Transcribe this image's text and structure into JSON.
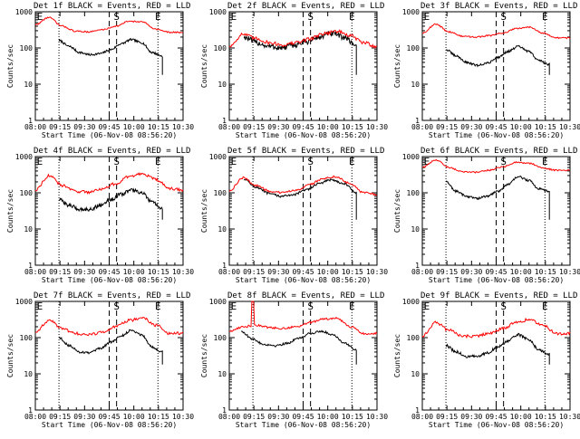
{
  "figure": {
    "ylabel": "Counts/sec",
    "xlabel": "Start Time (06-Nov-08 08:56:20)",
    "title_suffix": "BLACK = Events, RED = LLD",
    "x_ticks": [
      "08:00",
      "09:15",
      "09:30",
      "09:45",
      "10:00",
      "10:15",
      "10:30"
    ],
    "y_ticks": [
      "1",
      "10",
      "100",
      "1000"
    ],
    "colors": {
      "events": "#000000",
      "lld": "#ff0000",
      "axes": "#000000",
      "background": "#ffffff"
    }
  },
  "chart_data": [
    {
      "type": "line",
      "title": "Det 1f BLACK = Events, RED = LLD",
      "xlabel": "Start Time (06-Nov-08 08:56:20)",
      "ylabel": "Counts/sec",
      "log_y": true,
      "ylim": [
        1,
        1000
      ],
      "x_tick_labels": [
        "08:00",
        "09:15",
        "09:30",
        "09:45",
        "10:00",
        "10:15",
        "10:30"
      ],
      "markers": [
        {
          "label": "E",
          "x": 0.03
        },
        {
          "label": "S",
          "x": 0.55
        },
        {
          "label": "E",
          "x": 0.83
        }
      ],
      "dotted_lines": [
        0.16,
        0.83
      ],
      "dashed_lines": [
        0.5,
        0.55
      ],
      "series": [
        {
          "name": "Events",
          "color": "#000000",
          "x_start": 0.16,
          "x_end": 0.86,
          "end_drop": true,
          "noise": 0.03,
          "values": [
            160,
            110,
            75,
            65,
            70,
            90,
            130,
            170,
            140,
            75,
            60
          ]
        },
        {
          "name": "LLD",
          "color": "#ff0000",
          "x_start": 0.0,
          "x_end": 1.0,
          "noise": 0.02,
          "values": [
            440,
            700,
            400,
            290,
            280,
            320,
            400,
            550,
            520,
            330,
            270,
            270
          ]
        }
      ]
    },
    {
      "type": "line",
      "title": "Det 2f BLACK = Events, RED = LLD",
      "xlabel": "Start Time (06-Nov-08 08:56:20)",
      "ylabel": "Counts/sec",
      "log_y": true,
      "ylim": [
        1,
        1000
      ],
      "x_tick_labels": [
        "08:00",
        "09:15",
        "09:30",
        "09:45",
        "10:00",
        "10:15",
        "10:30"
      ],
      "markers": [
        {
          "label": "E",
          "x": 0.03
        },
        {
          "label": "S",
          "x": 0.55
        },
        {
          "label": "E",
          "x": 0.83
        }
      ],
      "dotted_lines": [
        0.16,
        0.83
      ],
      "dashed_lines": [
        0.5,
        0.55
      ],
      "series": [
        {
          "name": "Events",
          "color": "#000000",
          "x_start": 0.1,
          "x_end": 0.86,
          "end_drop": true,
          "noise": 0.08,
          "values": [
            200,
            140,
            110,
            100,
            120,
            150,
            200,
            250,
            200,
            120
          ]
        },
        {
          "name": "LLD",
          "color": "#ff0000",
          "x_start": 0.0,
          "x_end": 1.0,
          "noise": 0.05,
          "values": [
            110,
            240,
            180,
            140,
            120,
            140,
            180,
            250,
            290,
            220,
            140,
            110
          ]
        }
      ]
    },
    {
      "type": "line",
      "title": "Det 3f BLACK = Events, RED = LLD",
      "xlabel": "Start Time (06-Nov-08 08:56:20)",
      "ylabel": "Counts/sec",
      "log_y": true,
      "ylim": [
        1,
        1000
      ],
      "x_tick_labels": [
        "08:00",
        "09:15",
        "09:30",
        "09:45",
        "10:00",
        "10:15",
        "10:30"
      ],
      "markers": [
        {
          "label": "E",
          "x": 0.03
        },
        {
          "label": "S",
          "x": 0.55
        },
        {
          "label": "E",
          "x": 0.83
        }
      ],
      "dotted_lines": [
        0.16,
        0.83
      ],
      "dashed_lines": [
        0.5,
        0.55
      ],
      "series": [
        {
          "name": "Events",
          "color": "#000000",
          "x_start": 0.16,
          "x_end": 0.86,
          "end_drop": true,
          "noise": 0.03,
          "values": [
            90,
            60,
            40,
            33,
            38,
            55,
            80,
            110,
            80,
            45,
            35
          ]
        },
        {
          "name": "LLD",
          "color": "#ff0000",
          "x_start": 0.0,
          "x_end": 1.0,
          "noise": 0.02,
          "values": [
            260,
            450,
            280,
            210,
            200,
            220,
            260,
            340,
            380,
            260,
            190,
            190
          ]
        }
      ]
    },
    {
      "type": "line",
      "title": "Det 4f BLACK = Events, RED = LLD",
      "xlabel": "Start Time (06-Nov-08 08:56:20)",
      "ylabel": "Counts/sec",
      "log_y": true,
      "ylim": [
        1,
        1000
      ],
      "x_tick_labels": [
        "08:00",
        "09:15",
        "09:30",
        "09:45",
        "10:00",
        "10:15",
        "10:30"
      ],
      "markers": [
        {
          "label": "E",
          "x": 0.03
        },
        {
          "label": "S",
          "x": 0.55
        },
        {
          "label": "E",
          "x": 0.83
        }
      ],
      "dotted_lines": [
        0.16,
        0.83
      ],
      "dashed_lines": [
        0.5,
        0.55
      ],
      "series": [
        {
          "name": "Events",
          "color": "#000000",
          "x_start": 0.16,
          "x_end": 0.86,
          "end_drop": true,
          "noise": 0.05,
          "values": [
            65,
            45,
            35,
            35,
            45,
            65,
            90,
            120,
            100,
            55,
            35
          ]
        },
        {
          "name": "LLD",
          "color": "#ff0000",
          "x_start": 0.0,
          "x_end": 1.0,
          "noise": 0.04,
          "values": [
            120,
            300,
            160,
            110,
            105,
            130,
            180,
            280,
            340,
            230,
            130,
            120
          ]
        }
      ]
    },
    {
      "type": "line",
      "title": "Det 5f BLACK = Events, RED = LLD",
      "xlabel": "Start Time (06-Nov-08 08:56:20)",
      "ylabel": "Counts/sec",
      "log_y": true,
      "ylim": [
        1,
        1000
      ],
      "x_tick_labels": [
        "08:00",
        "09:15",
        "09:30",
        "09:45",
        "10:00",
        "10:15",
        "10:30"
      ],
      "markers": [
        {
          "label": "E",
          "x": 0.03
        },
        {
          "label": "S",
          "x": 0.55
        },
        {
          "label": "E",
          "x": 0.83
        }
      ],
      "dotted_lines": [
        0.16,
        0.83
      ],
      "dashed_lines": [
        0.5,
        0.55
      ],
      "series": [
        {
          "name": "Events",
          "color": "#000000",
          "x_start": 0.1,
          "x_end": 0.86,
          "end_drop": true,
          "noise": 0.03,
          "values": [
            240,
            140,
            95,
            80,
            90,
            120,
            180,
            230,
            180,
            100
          ]
        },
        {
          "name": "LLD",
          "color": "#ff0000",
          "x_start": 0.0,
          "x_end": 1.0,
          "noise": 0.03,
          "values": [
            110,
            260,
            160,
            110,
            100,
            120,
            170,
            250,
            280,
            180,
            100,
            90
          ]
        }
      ]
    },
    {
      "type": "line",
      "title": "Det 6f BLACK = Events, RED = LLD",
      "xlabel": "Start Time (06-Nov-08 08:56:20)",
      "ylabel": "Counts/sec",
      "log_y": true,
      "ylim": [
        1,
        1000
      ],
      "x_tick_labels": [
        "08:00",
        "09:15",
        "09:30",
        "09:45",
        "10:00",
        "10:15",
        "10:30"
      ],
      "markers": [
        {
          "label": "E",
          "x": 0.03
        },
        {
          "label": "S",
          "x": 0.55
        },
        {
          "label": "E",
          "x": 0.83
        }
      ],
      "dotted_lines": [
        0.16,
        0.83
      ],
      "dashed_lines": [
        0.5,
        0.55
      ],
      "series": [
        {
          "name": "Events",
          "color": "#000000",
          "x_start": 0.16,
          "x_end": 0.86,
          "end_drop": true,
          "noise": 0.03,
          "values": [
            200,
            110,
            80,
            70,
            80,
            110,
            170,
            280,
            220,
            130,
            110
          ]
        },
        {
          "name": "LLD",
          "color": "#ff0000",
          "x_start": 0.0,
          "x_end": 1.0,
          "noise": 0.02,
          "values": [
            500,
            800,
            500,
            380,
            370,
            420,
            520,
            700,
            650,
            480,
            420,
            420
          ]
        }
      ]
    },
    {
      "type": "line",
      "title": "Det 7f BLACK = Events, RED = LLD",
      "xlabel": "Start Time (06-Nov-08 08:56:20)",
      "ylabel": "Counts/sec",
      "log_y": true,
      "ylim": [
        1,
        1000
      ],
      "x_tick_labels": [
        "08:00",
        "09:15",
        "09:30",
        "09:45",
        "10:00",
        "10:15",
        "10:30"
      ],
      "markers": [
        {
          "label": "E",
          "x": 0.03
        },
        {
          "label": "S",
          "x": 0.55
        },
        {
          "label": "E",
          "x": 0.83
        }
      ],
      "dotted_lines": [
        0.16,
        0.83
      ],
      "dashed_lines": [
        0.5,
        0.55
      ],
      "series": [
        {
          "name": "Events",
          "color": "#000000",
          "x_start": 0.16,
          "x_end": 0.86,
          "end_drop": true,
          "noise": 0.03,
          "values": [
            100,
            60,
            40,
            38,
            50,
            75,
            110,
            160,
            120,
            55,
            40
          ]
        },
        {
          "name": "LLD",
          "color": "#ff0000",
          "x_start": 0.0,
          "x_end": 1.0,
          "noise": 0.04,
          "values": [
            140,
            300,
            180,
            130,
            120,
            140,
            200,
            300,
            350,
            220,
            130,
            130
          ]
        }
      ]
    },
    {
      "type": "line",
      "title": "Det 8f BLACK = Events, RED = LLD",
      "xlabel": "Start Time (06-Nov-08 08:56:20)",
      "ylabel": "Counts/sec",
      "log_y": true,
      "ylim": [
        1,
        1000
      ],
      "x_tick_labels": [
        "08:00",
        "09:15",
        "09:30",
        "09:45",
        "10:00",
        "10:15",
        "10:30"
      ],
      "markers": [
        {
          "label": "E",
          "x": 0.03
        },
        {
          "label": "S",
          "x": 0.55
        },
        {
          "label": "E",
          "x": 0.83
        }
      ],
      "dotted_lines": [
        0.16,
        0.83
      ],
      "dashed_lines": [
        0.5,
        0.55
      ],
      "series": [
        {
          "name": "Events",
          "color": "#000000",
          "x_start": 0.08,
          "x_end": 0.86,
          "end_drop": true,
          "noise": 0.03,
          "values": [
            150,
            90,
            65,
            60,
            70,
            95,
            130,
            150,
            120,
            70,
            45
          ]
        },
        {
          "name": "LLD",
          "color": "#ff0000",
          "x_start": 0.0,
          "x_end": 1.0,
          "noise": 0.03,
          "spike": {
            "x_start": 0.15,
            "x_end": 0.17,
            "value": 1000
          },
          "values": [
            150,
            200,
            220,
            190,
            180,
            200,
            260,
            330,
            340,
            200,
            130,
            130
          ]
        }
      ]
    },
    {
      "type": "line",
      "title": "Det 9f BLACK = Events, RED = LLD",
      "xlabel": "Start Time (06-Nov-08 08:56:20)",
      "ylabel": "Counts/sec",
      "log_y": true,
      "ylim": [
        1,
        1000
      ],
      "x_tick_labels": [
        "08:00",
        "09:15",
        "09:30",
        "09:45",
        "10:00",
        "10:15",
        "10:30"
      ],
      "markers": [
        {
          "label": "E",
          "x": 0.03
        },
        {
          "label": "S",
          "x": 0.55
        },
        {
          "label": "E",
          "x": 0.83
        }
      ],
      "dotted_lines": [
        0.16,
        0.83
      ],
      "dashed_lines": [
        0.5,
        0.55
      ],
      "series": [
        {
          "name": "Events",
          "color": "#000000",
          "x_start": 0.16,
          "x_end": 0.86,
          "end_drop": true,
          "noise": 0.04,
          "values": [
            60,
            40,
            30,
            30,
            38,
            55,
            80,
            120,
            90,
            45,
            35
          ]
        },
        {
          "name": "LLD",
          "color": "#ff0000",
          "x_start": 0.0,
          "x_end": 1.0,
          "noise": 0.04,
          "values": [
            110,
            260,
            160,
            110,
            110,
            130,
            180,
            260,
            320,
            220,
            130,
            130
          ]
        }
      ]
    }
  ]
}
